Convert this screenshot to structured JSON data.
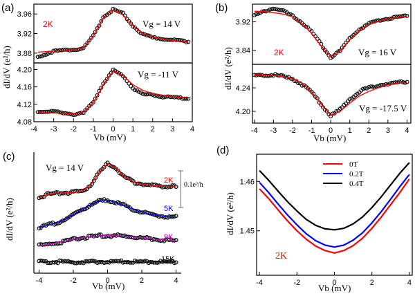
{
  "figure": {
    "panel_labels": [
      "(a)",
      "(b)",
      "(c)",
      "(d)"
    ],
    "x_axis_label": "Vb (mV)",
    "y_axis_label": "dI/dV (e²/h)",
    "scale_bar_label": "0.1e²/h"
  },
  "chart_data": [
    {
      "panel": "(a)",
      "type": "line",
      "subplots": [
        {
          "name": "a-top",
          "temperature": "2K",
          "gate_label": "Vg = 14 V",
          "xlim": [
            -4,
            4
          ],
          "ylim": [
            3.86,
            3.98
          ],
          "yticks": [
            3.88,
            3.92,
            3.96
          ],
          "x": [
            -3.8,
            -3,
            -2.5,
            -2,
            -1.5,
            -1,
            -0.5,
            0,
            0.5,
            1,
            1.5,
            2,
            2.5,
            3,
            3.5,
            3.8
          ],
          "data": [
            3.872,
            3.884,
            3.886,
            3.887,
            3.89,
            3.915,
            3.953,
            3.969,
            3.961,
            3.936,
            3.918,
            3.912,
            3.909,
            3.907,
            3.905,
            3.903
          ],
          "fit": [
            3.882,
            3.884,
            3.885,
            3.887,
            3.891,
            3.915,
            3.952,
            3.968,
            3.958,
            3.936,
            3.92,
            3.913,
            3.909,
            3.906,
            3.904,
            3.903
          ]
        },
        {
          "name": "a-bottom",
          "gate_label": "Vg = -11 V",
          "xlim": [
            -4,
            4
          ],
          "ylim": [
            4.08,
            4.215
          ],
          "yticks": [
            4.08,
            4.12,
            4.16,
            4.2
          ],
          "x": [
            -3.8,
            -3,
            -2.5,
            -2,
            -1.5,
            -1,
            -0.5,
            0,
            0.5,
            1,
            1.5,
            2,
            2.5,
            3,
            3.5,
            3.8
          ],
          "data": [
            4.103,
            4.103,
            4.1,
            4.097,
            4.1,
            4.125,
            4.168,
            4.198,
            4.186,
            4.157,
            4.143,
            4.142,
            4.137,
            4.136,
            4.134,
            4.134
          ],
          "fit": [
            4.101,
            4.1,
            4.099,
            4.098,
            4.102,
            4.123,
            4.165,
            4.197,
            4.186,
            4.165,
            4.152,
            4.145,
            4.141,
            4.138,
            4.136,
            4.135
          ]
        }
      ],
      "xticks": [
        -4,
        -3,
        -2,
        -1,
        0,
        1,
        2,
        3,
        4
      ]
    },
    {
      "panel": "(b)",
      "type": "line",
      "subplots": [
        {
          "name": "b-top",
          "temperature": "2K",
          "gate_label": "Vg = 16 V",
          "xlim": [
            -4.1,
            4.2
          ],
          "ylim": [
            3.8,
            3.97
          ],
          "yticks": [
            3.84,
            3.92
          ],
          "x": [
            -4,
            -3.5,
            -3,
            -2.5,
            -2,
            -1.5,
            -1,
            -0.5,
            0,
            0.5,
            1,
            1.5,
            2,
            2.5,
            3,
            3.5,
            4
          ],
          "data": [
            3.937,
            3.95,
            3.958,
            3.951,
            3.936,
            3.918,
            3.892,
            3.856,
            3.82,
            3.838,
            3.874,
            3.899,
            3.915,
            3.924,
            3.929,
            3.934,
            3.937
          ],
          "fit": [
            3.95,
            3.949,
            3.946,
            3.942,
            3.934,
            3.915,
            3.887,
            3.852,
            3.822,
            3.838,
            3.87,
            3.896,
            3.912,
            3.922,
            3.928,
            3.933,
            3.936
          ]
        },
        {
          "name": "b-bottom",
          "gate_label": "Vg = -17.5 V",
          "xlim": [
            -4.1,
            4.2
          ],
          "ylim": [
            4.18,
            4.28
          ],
          "yticks": [
            4.2,
            4.24
          ],
          "x": [
            -4,
            -3.5,
            -3,
            -2.5,
            -2,
            -1.5,
            -1,
            -0.5,
            0,
            0.5,
            1,
            1.5,
            2,
            2.5,
            3,
            3.5,
            4
          ],
          "data": [
            4.26,
            4.262,
            4.262,
            4.259,
            4.255,
            4.246,
            4.232,
            4.213,
            4.192,
            4.203,
            4.221,
            4.234,
            4.24,
            4.244,
            4.247,
            4.249,
            4.25
          ],
          "fit": [
            4.262,
            4.262,
            4.261,
            4.259,
            4.256,
            4.248,
            4.233,
            4.212,
            4.193,
            4.2,
            4.214,
            4.226,
            4.234,
            4.24,
            4.245,
            4.248,
            4.25
          ]
        }
      ],
      "xticks": [
        -4,
        -3,
        -2,
        -1,
        0,
        1,
        2,
        3,
        4
      ]
    },
    {
      "panel": "(c)",
      "type": "line",
      "gate_label": "Vg = 14 V",
      "xlim": [
        -4.3,
        4.3
      ],
      "xticks": [
        -4,
        -2,
        0,
        2,
        4
      ],
      "series": [
        {
          "name": "2K",
          "color": "#ff0000",
          "x": [
            -4,
            -3.5,
            -3,
            -2.5,
            -2,
            -1.5,
            -1,
            -0.5,
            0,
            0.5,
            1,
            1.5,
            2,
            2.5,
            3,
            3.5,
            4
          ],
          "values": [
            0.48,
            0.495,
            0.5,
            0.502,
            0.503,
            0.508,
            0.535,
            0.59,
            0.63,
            0.61,
            0.57,
            0.55,
            0.54,
            0.535,
            0.532,
            0.53,
            0.528
          ]
        },
        {
          "name": "5K",
          "color": "#0000ff",
          "x": [
            -4,
            -3.5,
            -3,
            -2.5,
            -2,
            -1.5,
            -1,
            -0.5,
            0,
            0.5,
            1,
            1.5,
            2,
            2.5,
            3,
            3.5,
            4
          ],
          "values": [
            0.35,
            0.36,
            0.37,
            0.385,
            0.405,
            0.428,
            0.45,
            0.465,
            0.47,
            0.46,
            0.445,
            0.43,
            0.417,
            0.408,
            0.402,
            0.398,
            0.396
          ]
        },
        {
          "name": "9K",
          "color": "#cc00cc",
          "x": [
            -4,
            -3.5,
            -3,
            -2.5,
            -2,
            -1.5,
            -1,
            -0.5,
            0,
            0.5,
            1,
            1.5,
            2,
            2.5,
            3,
            3.5,
            4
          ],
          "values": [
            0.27,
            0.275,
            0.282,
            0.29,
            0.298,
            0.305,
            0.31,
            0.313,
            0.315,
            0.314,
            0.312,
            0.309,
            0.305,
            0.301,
            0.297,
            0.294,
            0.292
          ]
        },
        {
          "name": "15K",
          "color": "#000000",
          "x": [
            -4,
            -3.5,
            -3,
            -2.5,
            -2,
            -1.5,
            -1,
            -0.5,
            0,
            0.5,
            1,
            1.5,
            2,
            2.5,
            3,
            3.5,
            4
          ],
          "values": [
            0.2,
            0.2,
            0.2,
            0.199,
            0.199,
            0.199,
            0.2,
            0.2,
            0.2,
            0.2,
            0.2,
            0.199,
            0.199,
            0.199,
            0.199,
            0.199,
            0.199
          ]
        }
      ]
    },
    {
      "panel": "(d)",
      "type": "line",
      "temperature": "2K",
      "xlim": [
        -4,
        4
      ],
      "ylim": [
        1.441,
        1.4655
      ],
      "xticks": [
        -4,
        -2,
        0,
        2,
        4
      ],
      "yticks": [
        1.45,
        1.46
      ],
      "legend_position": "top-center",
      "series": [
        {
          "name": "0T",
          "color": "#ff0000",
          "x": [
            -4,
            -3.5,
            -3,
            -2.5,
            -2,
            -1.5,
            -1,
            -0.5,
            0,
            0.5,
            1,
            1.5,
            2,
            2.5,
            3,
            3.5,
            4
          ],
          "values": [
            1.4585,
            1.4565,
            1.4542,
            1.452,
            1.45,
            1.4483,
            1.4469,
            1.446,
            1.4455,
            1.446,
            1.447,
            1.4485,
            1.4505,
            1.4528,
            1.4553,
            1.4578,
            1.4605
          ]
        },
        {
          "name": "0.2T",
          "color": "#0000ff",
          "x": [
            -4,
            -3.5,
            -3,
            -2.5,
            -2,
            -1.5,
            -1,
            -0.5,
            0,
            0.5,
            1,
            1.5,
            2,
            2.5,
            3,
            3.5,
            4
          ],
          "values": [
            1.4598,
            1.4577,
            1.4554,
            1.4532,
            1.4512,
            1.4494,
            1.448,
            1.4471,
            1.4467,
            1.4471,
            1.4481,
            1.4496,
            1.4516,
            1.4539,
            1.4564,
            1.459,
            1.4614
          ]
        },
        {
          "name": "0.4T",
          "color": "#000000",
          "x": [
            -4,
            -3.5,
            -3,
            -2.5,
            -2,
            -1.5,
            -1,
            -0.5,
            0,
            0.5,
            1,
            1.5,
            2,
            2.5,
            3,
            3.5,
            4
          ],
          "values": [
            1.4622,
            1.4602,
            1.458,
            1.4559,
            1.454,
            1.4523,
            1.4511,
            1.4504,
            1.4502,
            1.4505,
            1.4514,
            1.4528,
            1.4547,
            1.4569,
            1.4593,
            1.4617,
            1.4638
          ]
        }
      ]
    }
  ]
}
